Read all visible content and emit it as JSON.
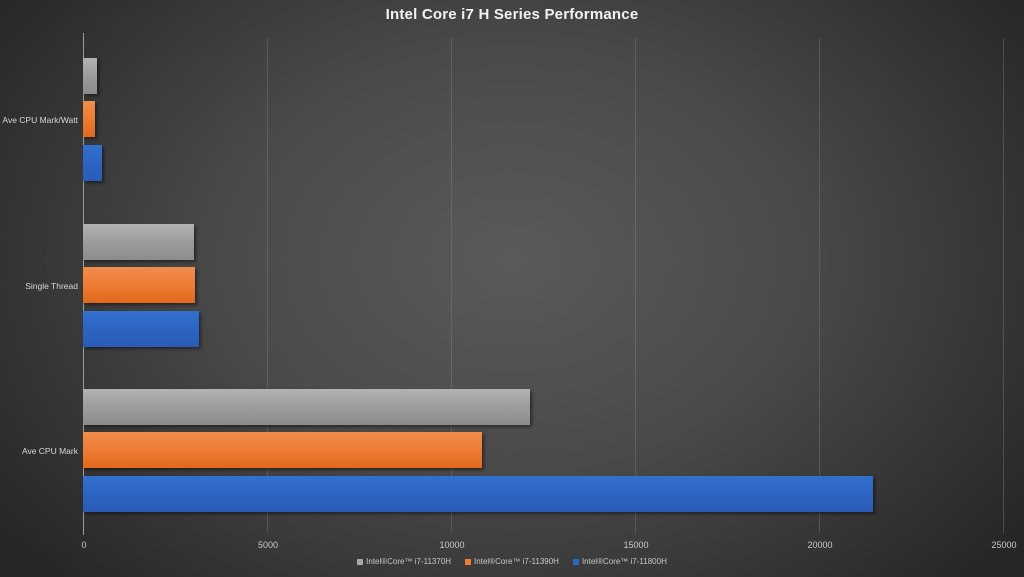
{
  "chart_data": {
    "type": "bar",
    "orientation": "horizontal",
    "title": "Intel Core i7 H Series Performance",
    "xlabel": "",
    "ylabel": "",
    "xlim": [
      0,
      25000
    ],
    "x_ticks": [
      "0",
      "5000",
      "10000",
      "15000",
      "20000",
      "25000"
    ],
    "grid": true,
    "legend_position": "bottom",
    "categories": [
      "Ave CPU Mark/Watt",
      "Single Thread",
      "Ave CPU Mark"
    ],
    "series": [
      {
        "name": "Intel®Core™ i7-11370H",
        "color": "#a6a6a6",
        "values": [
          380,
          3020,
          12160
        ]
      },
      {
        "name": "Intel®Core™ i7-11390H",
        "color": "#ed7d31",
        "values": [
          325,
          3050,
          10830
        ]
      },
      {
        "name": "Intel®Core™ i7-11800H",
        "color": "#2e66c4",
        "values": [
          515,
          3160,
          21460
        ]
      }
    ]
  }
}
